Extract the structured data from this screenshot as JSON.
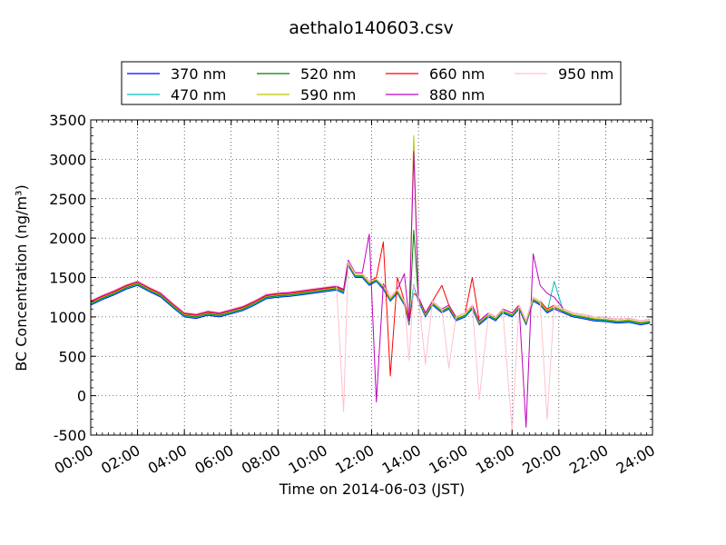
{
  "chart_data": {
    "type": "line",
    "title": "aethalo140603.csv",
    "xlabel": "Time on 2014-06-03 (JST)",
    "ylabel": "BC Concentration (ng/m³)",
    "ylim": [
      -500,
      3500
    ],
    "xlim_hours": [
      0,
      24
    ],
    "x_ticks": [
      "00:00",
      "02:00",
      "04:00",
      "06:00",
      "08:00",
      "10:00",
      "12:00",
      "14:00",
      "16:00",
      "18:00",
      "20:00",
      "22:00",
      "24:00"
    ],
    "y_ticks": [
      "-500",
      "0",
      "500",
      "1000",
      "1500",
      "2000",
      "2500",
      "3000",
      "3500"
    ],
    "grid": true,
    "legend_position": "top-center",
    "x": [
      0,
      0.5,
      1,
      1.5,
      2,
      2.5,
      3,
      3.5,
      4,
      4.5,
      5,
      5.5,
      6,
      6.5,
      7,
      7.5,
      8,
      8.5,
      9,
      9.5,
      10,
      10.5,
      10.8,
      11.0,
      11.3,
      11.6,
      11.9,
      12.2,
      12.5,
      12.8,
      13.1,
      13.4,
      13.6,
      13.8,
      14.0,
      14.3,
      14.6,
      15.0,
      15.3,
      15.6,
      16.0,
      16.3,
      16.6,
      17.0,
      17.3,
      17.6,
      18.0,
      18.3,
      18.6,
      18.9,
      19.2,
      19.5,
      19.8,
      20.2,
      20.6,
      21.0,
      21.5,
      22.0,
      22.5,
      23.0,
      23.5,
      23.9
    ],
    "series": [
      {
        "name": "370 nm",
        "color": "#0000ff",
        "values": [
          1150,
          1220,
          1280,
          1350,
          1400,
          1320,
          1250,
          1120,
          1000,
          980,
          1020,
          1000,
          1040,
          1080,
          1150,
          1230,
          1250,
          1260,
          1280,
          1300,
          1320,
          1340,
          1300,
          1650,
          1500,
          1500,
          1400,
          1450,
          1350,
          1200,
          1300,
          1150,
          900,
          1400,
          1200,
          1000,
          1150,
          1050,
          1100,
          950,
          1000,
          1100,
          900,
          1000,
          950,
          1050,
          1000,
          1100,
          900,
          1200,
          1150,
          1050,
          1100,
          1050,
          1000,
          980,
          950,
          940,
          920,
          930,
          900,
          920
        ]
      },
      {
        "name": "470 nm",
        "color": "#00bfbf",
        "values": [
          1160,
          1230,
          1290,
          1360,
          1410,
          1330,
          1260,
          1130,
          1010,
          990,
          1030,
          1010,
          1050,
          1090,
          1160,
          1240,
          1260,
          1270,
          1290,
          1310,
          1330,
          1350,
          1310,
          1660,
          1510,
          1510,
          1410,
          1460,
          1360,
          1210,
          1310,
          1160,
          910,
          1410,
          1210,
          1010,
          1160,
          1060,
          1110,
          960,
          1010,
          1110,
          910,
          1010,
          960,
          1060,
          1010,
          1110,
          910,
          1210,
          1160,
          1060,
          1450,
          1060,
          1010,
          990,
          960,
          950,
          930,
          940,
          910,
          930
        ]
      },
      {
        "name": "520 nm",
        "color": "#007f00",
        "values": [
          1170,
          1240,
          1300,
          1370,
          1420,
          1340,
          1270,
          1140,
          1020,
          1000,
          1040,
          1020,
          1060,
          1100,
          1170,
          1250,
          1270,
          1280,
          1300,
          1320,
          1340,
          1360,
          1320,
          1670,
          1520,
          1520,
          1420,
          1470,
          1370,
          1220,
          1320,
          1170,
          920,
          2100,
          1220,
          1020,
          1170,
          1070,
          1120,
          970,
          1020,
          1120,
          920,
          1020,
          970,
          1070,
          1020,
          1120,
          920,
          1220,
          1170,
          1070,
          1120,
          1070,
          1020,
          1000,
          970,
          960,
          940,
          950,
          920,
          940
        ]
      },
      {
        "name": "590 nm",
        "color": "#bfbf00",
        "values": [
          1180,
          1250,
          1310,
          1380,
          1430,
          1350,
          1280,
          1150,
          1030,
          1010,
          1050,
          1030,
          1070,
          1110,
          1180,
          1260,
          1280,
          1290,
          1310,
          1330,
          1350,
          1370,
          1330,
          1680,
          1530,
          1530,
          1430,
          1480,
          1380,
          1230,
          1330,
          1180,
          930,
          3300,
          1230,
          1030,
          1180,
          1080,
          1130,
          980,
          1030,
          1130,
          930,
          1030,
          980,
          1080,
          1030,
          1130,
          930,
          1230,
          1180,
          1080,
          1130,
          1080,
          1030,
          1010,
          980,
          970,
          950,
          960,
          930,
          950
        ]
      },
      {
        "name": "660 nm",
        "color": "#ff0000",
        "values": [
          1190,
          1260,
          1320,
          1390,
          1440,
          1360,
          1290,
          1160,
          1040,
          1020,
          1060,
          1040,
          1080,
          1120,
          1190,
          1270,
          1290,
          1300,
          1320,
          1340,
          1360,
          1380,
          1340,
          1700,
          1560,
          1550,
          1450,
          1500,
          1950,
          250,
          1500,
          1200,
          950,
          1300,
          1250,
          1050,
          1200,
          1400,
          1150,
          1000,
          1050,
          1500,
          950,
          1050,
          1000,
          1100,
          1050,
          1150,
          950,
          1250,
          1200,
          1100,
          1150,
          1100,
          1050,
          1030,
          1000,
          990,
          970,
          980,
          950,
          970
        ]
      },
      {
        "name": "880 nm",
        "color": "#bf00bf",
        "values": [
          1200,
          1270,
          1330,
          1400,
          1450,
          1370,
          1300,
          1170,
          1050,
          1030,
          1070,
          1050,
          1090,
          1130,
          1200,
          1280,
          1300,
          1310,
          1330,
          1350,
          1370,
          1390,
          1350,
          1720,
          1560,
          1560,
          2050,
          -80,
          1420,
          1250,
          1350,
          1550,
          950,
          3100,
          1250,
          1050,
          1200,
          1100,
          1150,
          1000,
          1050,
          1150,
          950,
          1050,
          1000,
          1100,
          1050,
          1150,
          -400,
          1800,
          1400,
          1300,
          1250,
          1100,
          1050,
          1030,
          1000,
          990,
          970,
          980,
          950,
          970
        ]
      },
      {
        "name": "950 nm",
        "color": "#ffc0cb",
        "values": [
          1210,
          1280,
          1340,
          1410,
          1460,
          1380,
          1310,
          1180,
          1060,
          1040,
          1080,
          1060,
          1100,
          1140,
          1210,
          1290,
          1310,
          1320,
          1340,
          1360,
          1380,
          1400,
          -200,
          1700,
          1550,
          1550,
          1450,
          1480,
          1400,
          1250,
          1350,
          1200,
          450,
          1400,
          1250,
          400,
          1200,
          1100,
          350,
          1000,
          1050,
          1150,
          -50,
          1050,
          1000,
          1100,
          -450,
          1150,
          950,
          1250,
          1200,
          -300,
          1150,
          1100,
          1050,
          1030,
          1000,
          990,
          970,
          980,
          950,
          970
        ]
      }
    ]
  }
}
